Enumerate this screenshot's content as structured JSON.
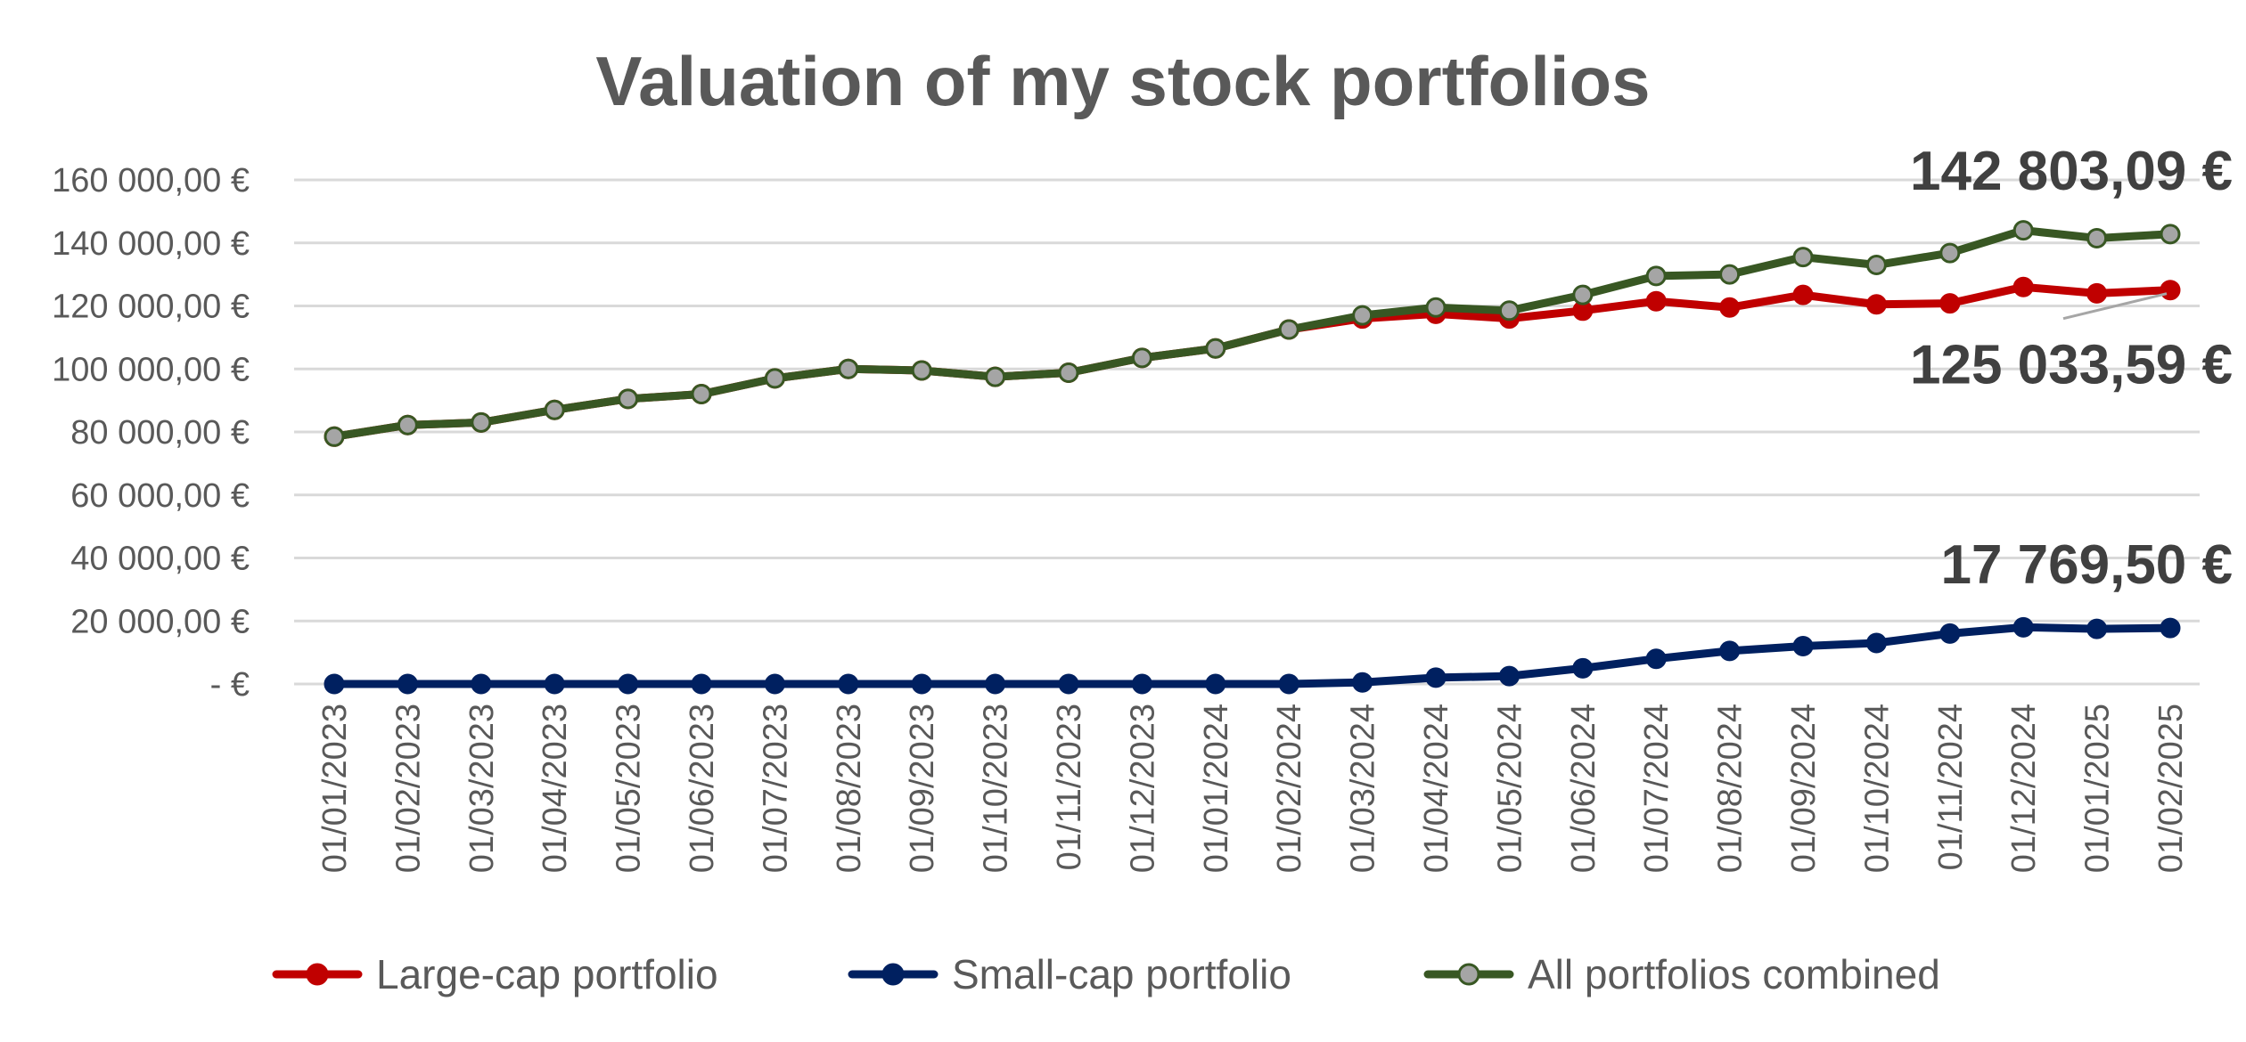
{
  "chart_data": {
    "type": "line",
    "title": "Valuation of my stock portfolios",
    "xlabel": "",
    "ylabel": "",
    "ylim": [
      0,
      160000
    ],
    "yticks": [
      {
        "value": 0,
        "label": "-  €"
      },
      {
        "value": 20000,
        "label": "20 000,00 €"
      },
      {
        "value": 40000,
        "label": "40 000,00 €"
      },
      {
        "value": 60000,
        "label": "60 000,00 €"
      },
      {
        "value": 80000,
        "label": "80 000,00 €"
      },
      {
        "value": 100000,
        "label": "100 000,00 €"
      },
      {
        "value": 120000,
        "label": "120 000,00 €"
      },
      {
        "value": 140000,
        "label": "140 000,00 €"
      },
      {
        "value": 160000,
        "label": "160 000,00 €"
      }
    ],
    "grid": true,
    "legend_position": "bottom",
    "categories": [
      "01/01/2023",
      "01/02/2023",
      "01/03/2023",
      "01/04/2023",
      "01/05/2023",
      "01/06/2023",
      "01/07/2023",
      "01/08/2023",
      "01/09/2023",
      "01/10/2023",
      "01/11/2023",
      "01/12/2023",
      "01/01/2024",
      "01/02/2024",
      "01/03/2024",
      "01/04/2024",
      "01/05/2024",
      "01/06/2024",
      "01/07/2024",
      "01/08/2024",
      "01/09/2024",
      "01/10/2024",
      "01/11/2024",
      "01/12/2024",
      "01/01/2025",
      "01/02/2025"
    ],
    "series": [
      {
        "name": "Large-cap portfolio",
        "color": "#c00000",
        "marker_fill": "#c00000",
        "values": [
          78500,
          82200,
          83000,
          87000,
          90500,
          92000,
          97000,
          100000,
          99500,
          97500,
          98800,
          103500,
          106500,
          112500,
          116000,
          117500,
          116000,
          118500,
          121500,
          119500,
          123500,
          120500,
          120800,
          126000,
          124000,
          125033.59
        ]
      },
      {
        "name": "Small-cap portfolio",
        "color": "#002060",
        "marker_fill": "#002060",
        "values": [
          0,
          0,
          0,
          0,
          0,
          0,
          0,
          0,
          0,
          0,
          0,
          0,
          0,
          0,
          500,
          2000,
          2500,
          5000,
          8000,
          10500,
          12000,
          13000,
          16000,
          18000,
          17500,
          17769.5
        ]
      },
      {
        "name": "All portfolios combined",
        "color": "#385723",
        "marker_fill": "#a5a5a5",
        "values": [
          78500,
          82200,
          83000,
          87000,
          90500,
          92000,
          97000,
          100000,
          99500,
          97500,
          98800,
          103500,
          106500,
          112500,
          117000,
          119500,
          118500,
          123500,
          129500,
          130000,
          135500,
          133000,
          136800,
          144000,
          141500,
          142803.09
        ]
      }
    ],
    "annotations": [
      {
        "text": "142 803,09 €",
        "series": "All portfolios combined",
        "x": "01/02/2025",
        "y": 142803.09
      },
      {
        "text": "125 033,59 €",
        "series": "Large-cap portfolio",
        "x": "01/02/2025",
        "y": 125033.59
      },
      {
        "text": "17 769,50 €",
        "series": "Small-cap portfolio",
        "x": "01/02/2025",
        "y": 17769.5
      }
    ]
  }
}
